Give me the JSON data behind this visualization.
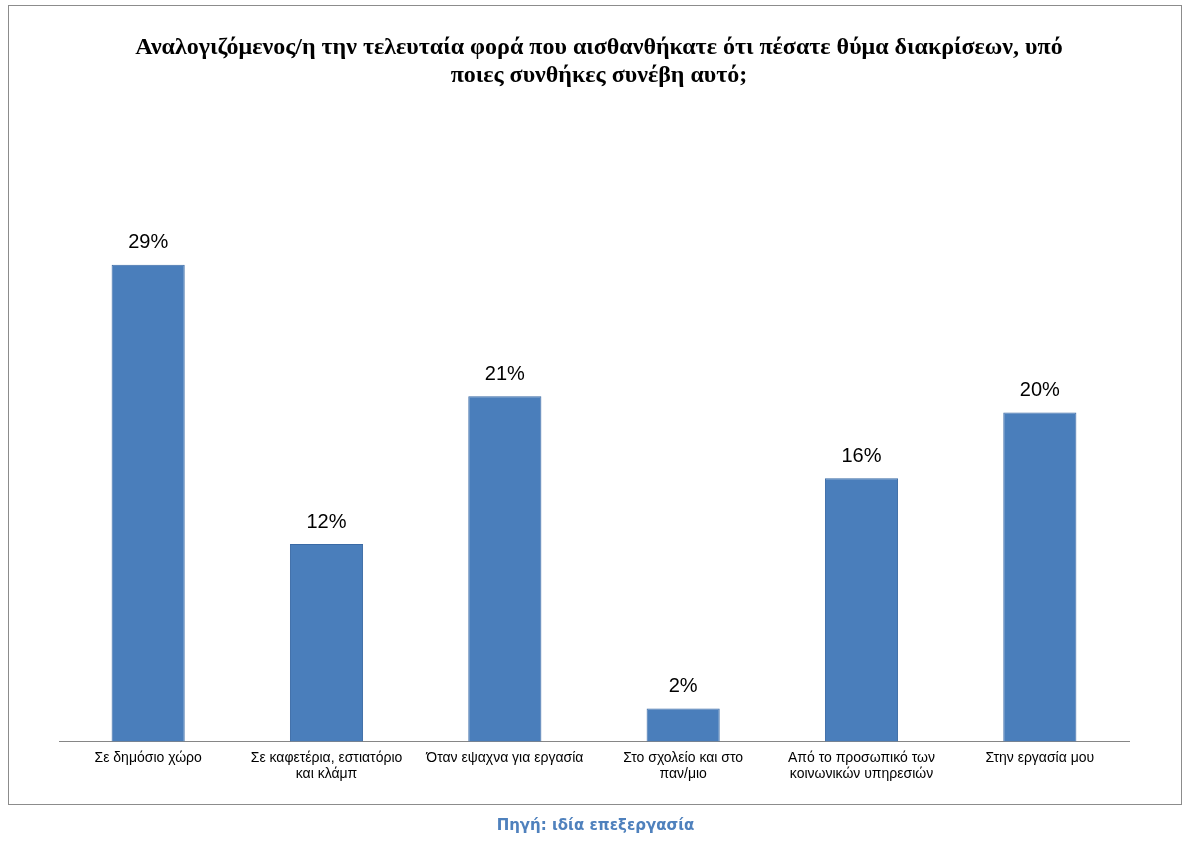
{
  "chart_data": {
    "type": "bar",
    "title": "Αναλογιζόμενος/η την τελευταία φορά που αισθανθήκατε ότι πέσατε θύμα διακρίσεων, υπό ποιες συνθήκες συνέβη αυτό;",
    "categories": [
      "Σε δημόσιο χώρο",
      "Σε καφετέρια, εστιατόριο και κλάμπ",
      "Όταν εψαχνα για εργασία",
      "Στο σχολείο και στο παν/μιο",
      "Από το προσωπικό των κοινωνικών υπηρεσιών",
      "Στην εργασία μου"
    ],
    "values": [
      29,
      12,
      21,
      2,
      16,
      20
    ],
    "value_labels": [
      "29%",
      "12%",
      "21%",
      "2%",
      "16%",
      "20%"
    ],
    "color": "#4a7ebb",
    "grid": false,
    "legend": false,
    "annotations": [
      "Πηγή: ιδία επεξεργασία"
    ]
  }
}
